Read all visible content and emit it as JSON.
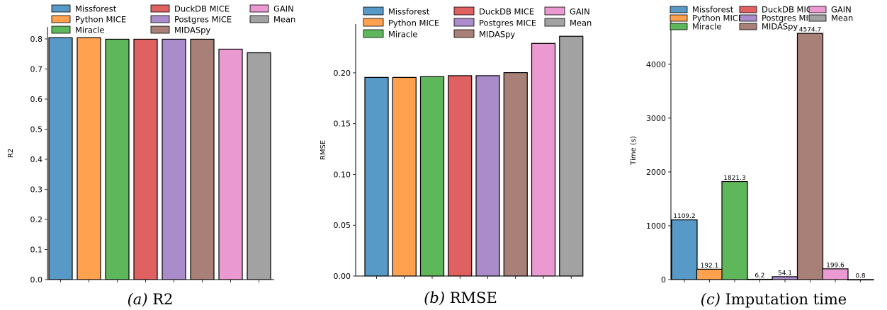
{
  "colors": {
    "Missforest": "#5799c7",
    "Python MICE": "#ffa14f",
    "Miracle": "#5fb75c",
    "DuckDB MICE": "#e06162",
    "Postgres MICE": "#ab8cca",
    "MIDASpy": "#a88077",
    "GAIN": "#ea9ad0",
    "Mean": "#a2a2a2"
  },
  "legend_order": [
    "Missforest",
    "Python MICE",
    "Miracle",
    "DuckDB MICE",
    "Postgres MICE",
    "MIDASpy",
    "GAIN",
    "Mean"
  ],
  "chart_data": [
    {
      "type": "bar",
      "caption_prefix": "(a)",
      "caption_text": "R2",
      "ylabel": "R2",
      "xlabel": "",
      "categories": [
        "Missforest",
        "Python MICE",
        "Miracle",
        "DuckDB MICE",
        "Postgres MICE",
        "MIDASpy",
        "GAIN",
        "Mean"
      ],
      "values": [
        0.804,
        0.804,
        0.799,
        0.799,
        0.799,
        0.799,
        0.766,
        0.754
      ],
      "ylim": [
        0,
        0.84
      ],
      "yticks": [
        "0.0",
        "0.1",
        "0.2",
        "0.3",
        "0.4",
        "0.5",
        "0.6",
        "0.7",
        "0.8"
      ],
      "grid": false,
      "legend_placement": "top-left, above plot",
      "data_labels": []
    },
    {
      "type": "bar",
      "caption_prefix": "(b)",
      "caption_text": "RMSE",
      "ylabel": "RMSE",
      "xlabel": "",
      "categories": [
        "Missforest",
        "Python MICE",
        "Miracle",
        "DuckDB MICE",
        "Postgres MICE",
        "MIDASpy",
        "GAIN",
        "Mean"
      ],
      "values": [
        0.1955,
        0.1955,
        0.1962,
        0.1972,
        0.1972,
        0.2002,
        0.229,
        0.236
      ],
      "ylim": [
        0,
        0.248
      ],
      "yticks": [
        "0.00",
        "0.05",
        "0.10",
        "0.15",
        "0.20"
      ],
      "grid": false,
      "legend_placement": "top, above bars",
      "data_labels": []
    },
    {
      "type": "bar",
      "caption_prefix": "(c)",
      "caption_text": "Imputation time",
      "ylabel": "Time (s)",
      "xlabel": "",
      "categories": [
        "Missforest",
        "Python MICE",
        "Miracle",
        "DuckDB MICE",
        "Postgres MICE",
        "MIDASpy",
        "GAIN",
        "Mean"
      ],
      "values": [
        1109.2,
        192.1,
        1821.3,
        6.2,
        54.1,
        4574.7,
        199.6,
        0.8
      ],
      "ylim": [
        0,
        4800
      ],
      "yticks": [
        "0",
        "1000",
        "2000",
        "3000",
        "4000"
      ],
      "grid": false,
      "legend_placement": "top, above plot",
      "data_labels": [
        "1109.2",
        "192.1",
        "1821.3",
        "6.2",
        "54.1",
        "4574.7",
        "199.6",
        "0.8"
      ]
    }
  ]
}
